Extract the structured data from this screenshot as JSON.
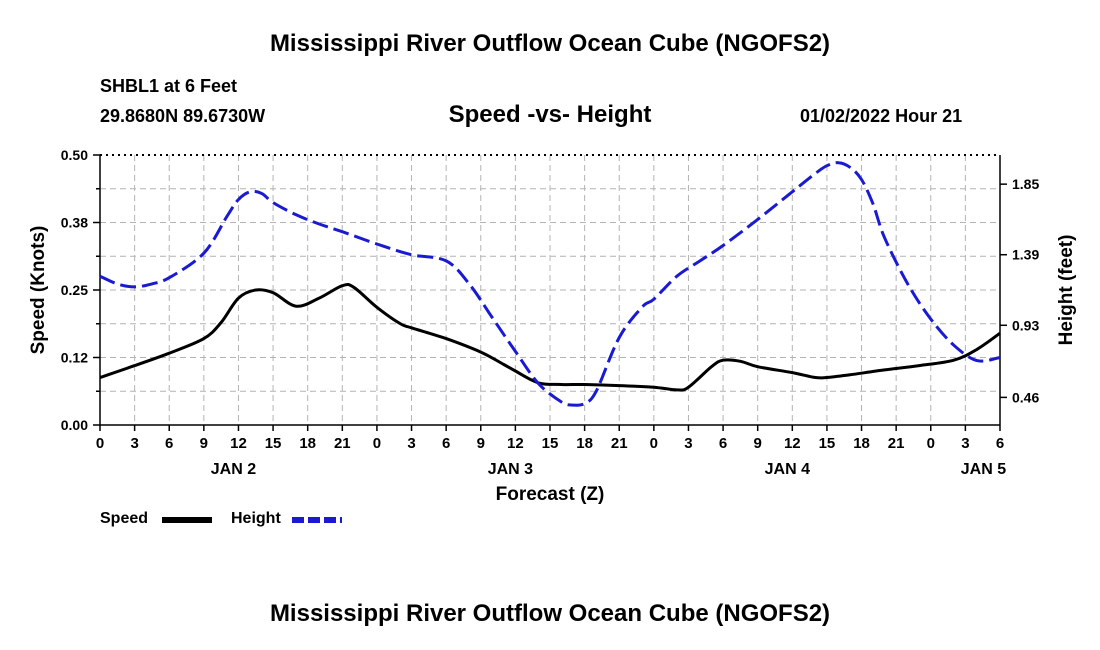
{
  "header": {
    "title": "Mississippi River Outflow Ocean Cube (NGOFS2)",
    "station": "SHBL1 at 6 Feet",
    "coords": "29.8680N  89.6730W",
    "subtitle": "Speed -vs- Height",
    "datetime": "01/02/2022 Hour 21"
  },
  "legend": {
    "speed_label": "Speed",
    "height_label": "Height"
  },
  "footer": {
    "title": "Mississippi River Outflow Ocean Cube (NGOFS2)"
  },
  "colors": {
    "speed": "#000000",
    "height": "#1a1ad2",
    "grid": "#b4b4b4"
  },
  "chart_data": {
    "type": "line",
    "title": "Speed -vs- Height",
    "xlabel": "Forecast (Z)",
    "ylabel": "Speed (Knots)",
    "y2label": "Height (feet)",
    "xlim": [
      0,
      78
    ],
    "ylim": [
      0,
      0.5
    ],
    "y2lim": [
      0.28,
      2.04
    ],
    "y_ticks": [
      {
        "value": 0,
        "label": "0.00"
      },
      {
        "value": 0.125,
        "label": "0.12"
      },
      {
        "value": 0.25,
        "label": "0.25"
      },
      {
        "value": 0.375,
        "label": "0.38"
      },
      {
        "value": 0.5,
        "label": "0.50"
      }
    ],
    "y2_ticks": [
      {
        "value": 0.46,
        "label": "0.46"
      },
      {
        "value": 0.93,
        "label": "0.93"
      },
      {
        "value": 1.39,
        "label": "1.39"
      },
      {
        "value": 1.85,
        "label": "1.85"
      }
    ],
    "x_tick_labels": [
      "0",
      "3",
      "6",
      "9",
      "12",
      "15",
      "18",
      "21",
      "0",
      "3",
      "6",
      "9",
      "12",
      "15",
      "18",
      "21",
      "0",
      "3",
      "6",
      "9",
      "12",
      "15",
      "18",
      "21",
      "0",
      "3",
      "6"
    ],
    "date_labels": [
      {
        "x": 12,
        "label": "JAN 2"
      },
      {
        "x": 36,
        "label": "JAN 3"
      },
      {
        "x": 60,
        "label": "JAN 4"
      },
      {
        "x": 77,
        "label": "JAN 5"
      }
    ],
    "legend_position": "bottom-left",
    "grid": true,
    "series": [
      {
        "name": "Speed",
        "axis": "left",
        "style": "solid",
        "x": [
          0,
          3,
          6,
          9,
          10.5,
          12,
          13.5,
          15,
          17,
          19,
          21,
          22,
          24,
          26,
          27,
          30,
          33,
          35,
          36,
          38,
          40,
          42,
          45,
          48,
          50,
          51,
          53,
          54,
          55.5,
          57,
          60,
          62,
          63,
          65,
          68,
          71,
          74,
          76,
          78
        ],
        "y": [
          0.088,
          0.11,
          0.133,
          0.16,
          0.19,
          0.235,
          0.25,
          0.245,
          0.22,
          0.235,
          0.258,
          0.255,
          0.218,
          0.188,
          0.18,
          0.16,
          0.135,
          0.112,
          0.1,
          0.078,
          0.075,
          0.075,
          0.073,
          0.07,
          0.065,
          0.07,
          0.108,
          0.12,
          0.118,
          0.108,
          0.097,
          0.088,
          0.088,
          0.093,
          0.102,
          0.11,
          0.12,
          0.14,
          0.17
        ]
      },
      {
        "name": "Height",
        "axis": "right",
        "style": "dashed",
        "x": [
          0,
          1.5,
          3,
          4.5,
          6,
          9,
          11,
          12,
          13,
          14,
          15,
          17,
          19,
          21,
          24,
          27,
          30,
          32,
          34,
          36,
          38,
          40,
          41,
          42,
          43,
          45,
          47,
          48,
          50,
          52,
          54,
          57,
          60,
          62,
          63,
          64,
          65,
          66,
          67,
          68,
          70,
          72,
          74,
          76,
          78
        ],
        "y": [
          1.25,
          1.2,
          1.18,
          1.2,
          1.24,
          1.4,
          1.64,
          1.75,
          1.8,
          1.79,
          1.73,
          1.65,
          1.59,
          1.54,
          1.46,
          1.39,
          1.35,
          1.2,
          0.98,
          0.76,
          0.55,
          0.43,
          0.41,
          0.42,
          0.5,
          0.85,
          1.05,
          1.1,
          1.25,
          1.35,
          1.45,
          1.62,
          1.8,
          1.92,
          1.97,
          1.99,
          1.96,
          1.88,
          1.72,
          1.5,
          1.2,
          0.97,
          0.8,
          0.7,
          0.72
        ]
      }
    ]
  }
}
